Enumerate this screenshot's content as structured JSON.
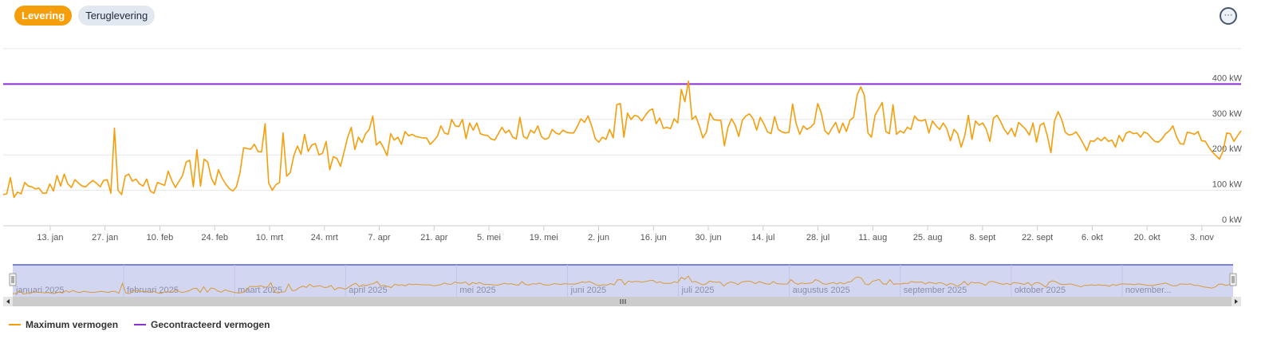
{
  "tabs": [
    {
      "label": "Levering",
      "active": true
    },
    {
      "label": "Teruglevering",
      "active": false
    }
  ],
  "menu": {
    "icon": "ellipsis-icon"
  },
  "colors": {
    "max": "#f59e0b",
    "contract": "#8b2fd0",
    "tab_active": "#f59e0b"
  },
  "legend": {
    "max": "Maximum vermogen",
    "contract": "Gecontracteerd vermogen"
  },
  "chart_data": {
    "type": "line",
    "ylabel": "",
    "ylim": [
      0,
      500
    ],
    "y_ticks": [
      "0 kW",
      "100 kW",
      "200 kW",
      "300 kW",
      "400 kW"
    ],
    "y_tick_values": [
      0,
      100,
      200,
      300,
      400
    ],
    "x_ticks": [
      "13. jan",
      "27. jan",
      "10. feb",
      "24. feb",
      "10. mrt",
      "24. mrt",
      "7. apr",
      "21. apr",
      "5. mei",
      "19. mei",
      "2. jun",
      "16. jun",
      "30. jun",
      "14. jul",
      "28. jul",
      "11. aug",
      "25. aug",
      "8. sept",
      "22. sept",
      "6. okt",
      "20. okt",
      "3. nov"
    ],
    "x_tick_days": [
      12,
      26,
      40,
      54,
      68,
      82,
      96,
      110,
      124,
      138,
      152,
      166,
      180,
      194,
      208,
      222,
      236,
      250,
      264,
      278,
      292,
      306
    ],
    "x_range_days": [
      0,
      316
    ],
    "series": [
      {
        "name": "Maximum vermogen",
        "color": "#f59e0b",
        "values": [
          88,
          90,
          136,
          80,
          95,
          90,
          122,
          112,
          110,
          104,
          106,
          92,
          92,
          118,
          98,
          142,
          112,
          146,
          118,
          108,
          130,
          120,
          112,
          110,
          120,
          128,
          120,
          110,
          128,
          130,
          92,
          276,
          100,
          88,
          140,
          146,
          126,
          132,
          118,
          112,
          132,
          98,
          92,
          122,
          118,
          114,
          154,
          128,
          108,
          125,
          142,
          180,
          185,
          110,
          215,
          112,
          188,
          180,
          135,
          115,
          158,
          135,
          118,
          105,
          98,
          110,
          150,
          220,
          218,
          216,
          230,
          210,
          208,
          288,
          120,
          100,
          116,
          122,
          262,
          140,
          150,
          198,
          225,
          202,
          258,
          210,
          228,
          232,
          200,
          205,
          238,
          158,
          195,
          190,
          168,
          208,
          250,
          278,
          215,
          250,
          235,
          260,
          272,
          310,
          228,
          238,
          220,
          198,
          260,
          242,
          250,
          230,
          266,
          254,
          258,
          252,
          250,
          248,
          248,
          230,
          240,
          252,
          282,
          262,
          258,
          300,
          282,
          280,
          300,
          246,
          290,
          270,
          290,
          260,
          256,
          255,
          245,
          242,
          260,
          278,
          262,
          270,
          250,
          245,
          306,
          252,
          246,
          270,
          262,
          282,
          252,
          244,
          248,
          272,
          262,
          258,
          270,
          264,
          262,
          262,
          280,
          302,
          292,
          310,
          282,
          246,
          236,
          250,
          244,
          272,
          248,
          342,
          345,
          250,
          318,
          300,
          312,
          308,
          296,
          312,
          325,
          330,
          288,
          304,
          275,
          278,
          274,
          302,
          290,
          385,
          350,
          408,
          300,
          310,
          282,
          248,
          265,
          318,
          300,
          298,
          298,
          226,
          278,
          302,
          284,
          252,
          298,
          310,
          316,
          302,
          270,
          306,
          288,
          265,
          260,
          308,
          272,
          265,
          262,
          264,
          344,
          288,
          258,
          282,
          272,
          278,
          288,
          345,
          318,
          268,
          258,
          276,
          292,
          262,
          290,
          266,
          298,
          306,
          370,
          392,
          368,
          262,
          250,
          312,
          330,
          348,
          266,
          260,
          342,
          258,
          268,
          262,
          278,
          272,
          310,
          298,
          296,
          300,
          262,
          296,
          282,
          272,
          290,
          274,
          240,
          272,
          260,
          222,
          255,
          312,
          244,
          296,
          284,
          290,
          272,
          238,
          304,
          312,
          294,
          272,
          258,
          275,
          252,
          292,
          282,
          272,
          256,
          290,
          236,
          284,
          290,
          254,
          206,
          296,
          322,
          300,
          264,
          256,
          258,
          265,
          250,
          232,
          212,
          240,
          238,
          248,
          240,
          250,
          238,
          242,
          222,
          255,
          238,
          262,
          266,
          260,
          262,
          250,
          265,
          260,
          248,
          238,
          236,
          246,
          260,
          268,
          282,
          252,
          232,
          230,
          264,
          262,
          258,
          266,
          240,
          239,
          222,
          208,
          198,
          188,
          212,
          262,
          260,
          238,
          254,
          268
        ]
      },
      {
        "name": "Gecontracteerd vermogen",
        "color": "#8b2fd0",
        "values": [
          400
        ]
      }
    ],
    "navigator": {
      "labels": [
        "januari 2025",
        "februari 2025",
        "maart 2025",
        "april 2025",
        "mei 2025",
        "juni 2025",
        "juli 2025",
        "augustus 2025",
        "september 2025",
        "oktober 2025",
        "november..."
      ]
    }
  }
}
